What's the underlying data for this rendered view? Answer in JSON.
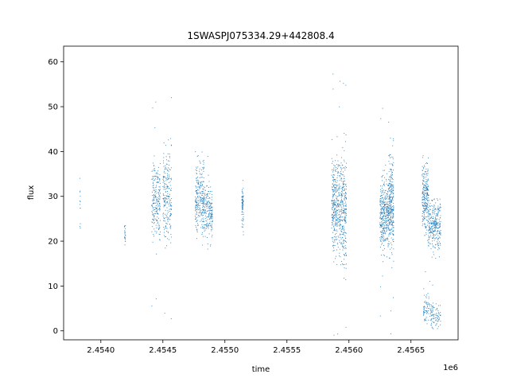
{
  "chart_data": {
    "type": "scatter",
    "title": "1SWASPJ075334.29+442808.4",
    "xlabel": "time",
    "ylabel": "flux",
    "x_offset_label": "1e6",
    "xlim": [
      2453700,
      2456880
    ],
    "ylim": [
      -2,
      63.5
    ],
    "x_ticks": [
      2454000,
      2454500,
      2455000,
      2455500,
      2456000,
      2456500
    ],
    "x_tick_labels": [
      "2.4540",
      "2.4545",
      "2.4550",
      "2.4555",
      "2.4560",
      "2.4565"
    ],
    "y_ticks": [
      0,
      10,
      20,
      30,
      40,
      50,
      60
    ],
    "y_tick_labels": [
      "0",
      "10",
      "20",
      "30",
      "40",
      "50",
      "60"
    ],
    "grid": false,
    "point_color": "#1f77b4",
    "clusters": [
      {
        "x_start": 2453830,
        "x_end": 2453835,
        "y_center": 28,
        "y_spread": 3,
        "n": 12
      },
      {
        "x_start": 2454190,
        "x_end": 2454200,
        "y_center": 21.5,
        "y_spread": 1.5,
        "n": 20
      },
      {
        "x_start": 2454410,
        "x_end": 2454480,
        "y_center": 29,
        "y_spread": 4,
        "n": 220
      },
      {
        "x_start": 2454500,
        "x_end": 2454570,
        "y_center": 29,
        "y_spread": 5,
        "n": 220
      },
      {
        "x_start": 2454760,
        "x_end": 2454830,
        "y_center": 30,
        "y_spread": 4,
        "n": 250
      },
      {
        "x_start": 2454830,
        "x_end": 2454900,
        "y_center": 27,
        "y_spread": 3,
        "n": 200
      },
      {
        "x_start": 2455135,
        "x_end": 2455150,
        "y_center": 28,
        "y_spread": 2,
        "n": 80
      },
      {
        "x_start": 2455860,
        "x_end": 2455920,
        "y_center": 28,
        "y_spread": 5,
        "n": 300
      },
      {
        "x_start": 2455920,
        "x_end": 2455980,
        "y_center": 27,
        "y_spread": 6,
        "n": 300
      },
      {
        "x_start": 2456250,
        "x_end": 2456320,
        "y_center": 26,
        "y_spread": 4,
        "n": 350
      },
      {
        "x_start": 2456320,
        "x_end": 2456360,
        "y_center": 28,
        "y_spread": 5,
        "n": 300
      },
      {
        "x_start": 2456590,
        "x_end": 2456640,
        "y_center": 30,
        "y_spread": 4,
        "n": 250
      },
      {
        "x_start": 2456640,
        "x_end": 2456740,
        "y_center": 24,
        "y_spread": 3,
        "n": 300
      },
      {
        "x_start": 2456600,
        "x_end": 2456650,
        "y_center": 5,
        "y_spread": 1.5,
        "n": 60
      },
      {
        "x_start": 2456650,
        "x_end": 2456740,
        "y_center": 3.5,
        "y_spread": 1.5,
        "n": 90
      }
    ]
  }
}
